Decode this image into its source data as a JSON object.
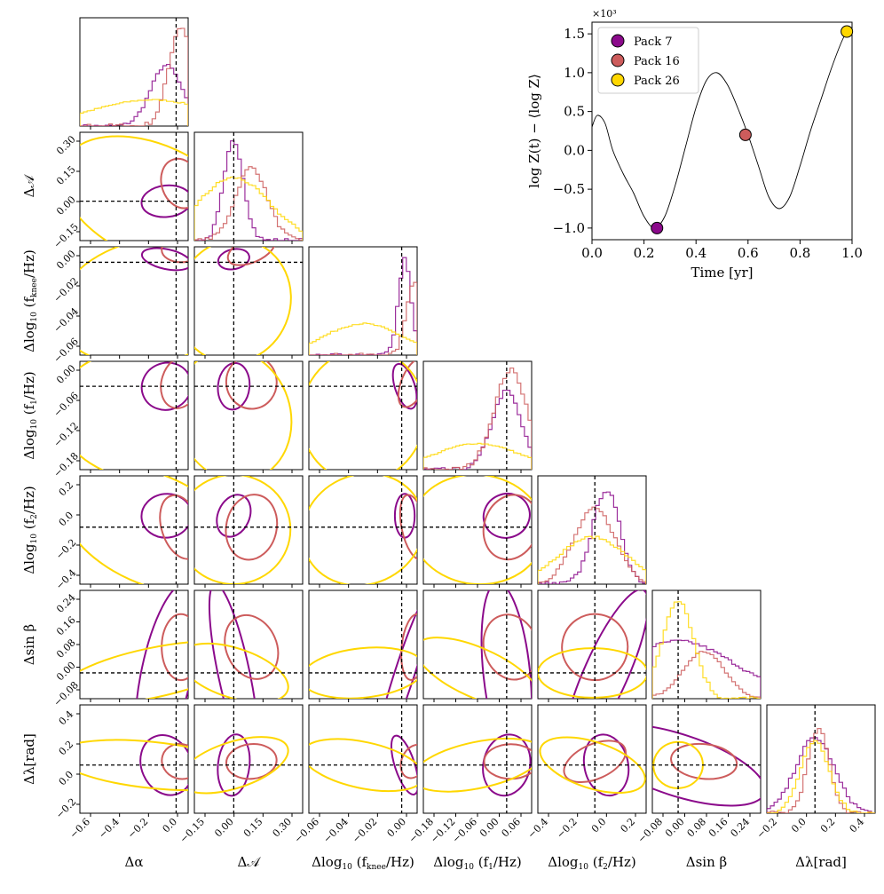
{
  "colors": {
    "pack7": "#8b0a8b",
    "pack16": "#cd5c5c",
    "pack26": "#ffd700",
    "truth": "#000000"
  },
  "chart_data": [
    {
      "type": "line",
      "title": "",
      "xlabel": "Time [yr]",
      "ylabel": "log Z(t) − ⟨log Z⟩",
      "ylabel_scale": "×10³",
      "xlim": [
        0.0,
        1.0
      ],
      "ylim": [
        -1.15,
        1.65
      ],
      "xticks": [
        "0.0",
        "0.2",
        "0.4",
        "0.6",
        "0.8",
        "1.0"
      ],
      "yticks": [
        "−1.0",
        "−0.5",
        "0.0",
        "0.5",
        "1.0",
        "1.5"
      ],
      "x": [
        0.0,
        0.02,
        0.05,
        0.08,
        0.12,
        0.16,
        0.2,
        0.24,
        0.28,
        0.32,
        0.36,
        0.4,
        0.44,
        0.48,
        0.52,
        0.56,
        0.6,
        0.64,
        0.68,
        0.72,
        0.76,
        0.8,
        0.84,
        0.88,
        0.92,
        0.96,
        0.98,
        1.0
      ],
      "y": [
        0.3,
        0.45,
        0.35,
        0.0,
        -0.3,
        -0.55,
        -0.85,
        -1.0,
        -0.85,
        -0.45,
        0.05,
        0.55,
        0.9,
        1.0,
        0.85,
        0.55,
        0.2,
        -0.2,
        -0.6,
        -0.75,
        -0.6,
        -0.2,
        0.25,
        0.65,
        1.05,
        1.4,
        1.52,
        1.55
      ],
      "legend": [
        {
          "label": "Pack 7",
          "x": 0.25,
          "y": -1.0
        },
        {
          "label": "Pack 16",
          "x": 0.59,
          "y": 0.2
        },
        {
          "label": "Pack 26",
          "x": 0.98,
          "y": 1.53
        }
      ],
      "legend_position": "top-left"
    },
    {
      "type": "corner",
      "parameters": [
        "Δα",
        "Δ𝒜",
        "Δlog₁₀(f_knee/Hz)",
        "Δlog₁₀(f₁/Hz)",
        "Δlog₁₀(f₂/Hz)",
        "Δ sin β",
        "Δλ[rad]"
      ],
      "truth_values": [
        0,
        0,
        0,
        0,
        0,
        0,
        0
      ],
      "ranges": [
        [
          -0.8,
          0.1
        ],
        [
          -0.2,
          0.35
        ],
        [
          -0.06,
          0.01
        ],
        [
          -0.2,
          0.06
        ],
        [
          -0.5,
          0.45
        ],
        [
          -0.1,
          0.32
        ],
        [
          -0.4,
          0.5
        ]
      ],
      "xticks": [
        [
          "−0.6",
          "−0.4",
          "−0.2",
          "0.0"
        ],
        [
          "−0.15",
          "0.00",
          "0.15",
          "0.30"
        ],
        [
          "−0.06",
          "−0.04",
          "−0.02",
          "0.00"
        ],
        [
          "−0.18",
          "−0.12",
          "−0.06",
          "0.00",
          "0.06"
        ],
        [
          "−0.4",
          "−0.2",
          "0.0",
          "0.2"
        ],
        [
          "−0.08",
          "0.00",
          "0.08",
          "0.16",
          "0.24"
        ],
        [
          "−0.2",
          "0.0",
          "0.2",
          "0.4"
        ]
      ],
      "yticks": [
        [],
        [
          "−0.15",
          "0.00",
          "0.15",
          "0.30"
        ],
        [
          "−0.06",
          "−0.04",
          "−0.02",
          "0.00"
        ],
        [
          "−0.18",
          "−0.12",
          "−0.06",
          "0.00"
        ],
        [
          "−0.4",
          "−0.2",
          "0.0",
          "0.2"
        ],
        [
          "−0.08",
          "0.00",
          "0.08",
          "0.16",
          "0.24"
        ],
        [
          "−0.2",
          "0.0",
          "0.2",
          "0.4"
        ]
      ],
      "series": [
        {
          "name": "Pack 7",
          "centers": [
            -0.08,
            0.0,
            0.002,
            0.0,
            0.1,
            0.0,
            0.0
          ],
          "widths": [
            0.13,
            0.05,
            0.004,
            0.035,
            0.12,
            0.22,
            0.16
          ],
          "hist_peak": [
            0.58,
            0.95,
            0.92,
            0.75,
            0.9,
            0.55,
            0.72
          ]
        },
        {
          "name": "Pack 16",
          "centers": [
            0.04,
            0.09,
            0.008,
            0.01,
            0.0,
            0.1,
            0.03
          ],
          "widths": [
            0.1,
            0.08,
            0.005,
            0.04,
            0.18,
            0.08,
            0.09
          ],
          "hist_peak": [
            0.95,
            0.7,
            0.7,
            0.95,
            0.72,
            0.45,
            0.8
          ]
        },
        {
          "name": "Pack 26",
          "centers": [
            -0.2,
            0.0,
            -0.025,
            -0.07,
            -0.02,
            0.0,
            0.0
          ],
          "widths": [
            0.5,
            0.18,
            0.025,
            0.1,
            0.3,
            0.06,
            0.12
          ],
          "hist_peak": [
            0.25,
            0.6,
            0.3,
            0.25,
            0.45,
            0.95,
            0.68
          ]
        }
      ]
    }
  ]
}
